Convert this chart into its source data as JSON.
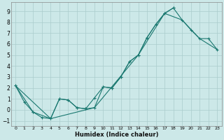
{
  "xlabel": "Humidex (Indice chaleur)",
  "background_color": "#cce8e8",
  "grid_color": "#aacccc",
  "line_color": "#1a7870",
  "xlim": [
    -0.5,
    23.5
  ],
  "ylim": [
    -1.5,
    9.8
  ],
  "xticks": [
    0,
    1,
    2,
    3,
    4,
    5,
    6,
    7,
    8,
    9,
    10,
    11,
    12,
    13,
    14,
    15,
    16,
    17,
    18,
    19,
    20,
    21,
    22,
    23
  ],
  "yticks": [
    -1,
    0,
    1,
    2,
    3,
    4,
    5,
    6,
    7,
    8,
    9
  ],
  "series": [
    {
      "x": [
        0,
        1,
        2,
        3,
        4,
        5,
        6,
        7,
        8,
        9,
        10,
        11,
        12,
        13,
        14,
        15,
        16,
        17,
        18
      ],
      "y": [
        2.2,
        0.7,
        -0.2,
        -0.7,
        -0.8,
        1.0,
        0.9,
        0.2,
        0.1,
        0.2,
        2.1,
        2.0,
        3.0,
        4.4,
        5.0,
        6.6,
        7.8,
        8.8,
        9.3
      ],
      "has_markers": true
    },
    {
      "x": [
        0,
        2,
        4,
        5,
        6,
        7,
        8,
        9,
        10,
        11,
        12,
        13,
        14,
        15,
        16,
        17,
        18,
        19,
        20,
        21,
        22,
        23
      ],
      "y": [
        2.2,
        -0.2,
        -0.8,
        1.0,
        0.9,
        0.2,
        0.1,
        1.1,
        2.1,
        2.0,
        3.0,
        4.4,
        5.0,
        6.6,
        7.8,
        8.8,
        9.3,
        8.2,
        7.3,
        6.5,
        6.5,
        5.5
      ],
      "has_markers": true
    },
    {
      "x": [
        0,
        4,
        9,
        14,
        17,
        19,
        21,
        23
      ],
      "y": [
        2.2,
        -0.8,
        0.2,
        5.0,
        8.8,
        8.2,
        6.5,
        5.5
      ],
      "has_markers": false
    }
  ]
}
